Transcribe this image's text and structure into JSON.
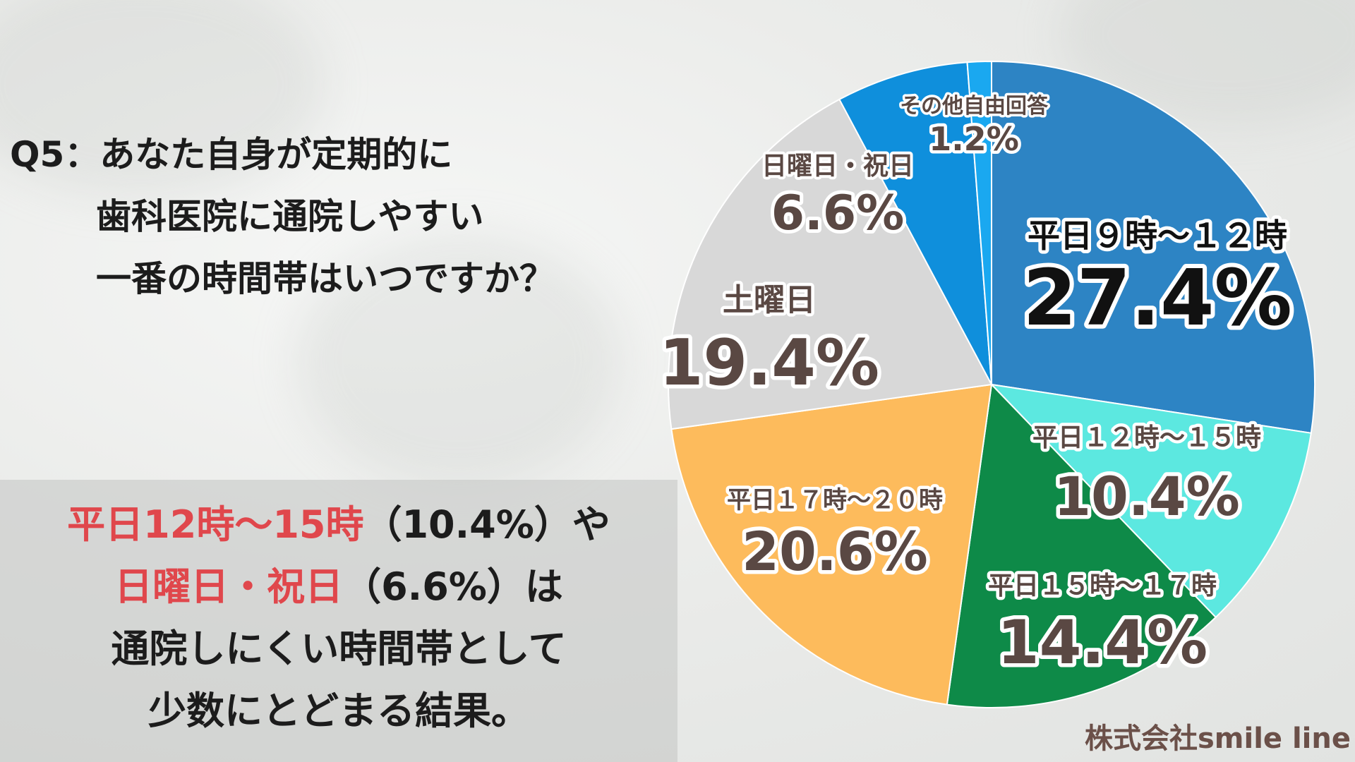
{
  "question": {
    "line1": "Q5：あなた自身が定期的に",
    "line2": "歯科医院に通院しやすい",
    "line3": "一番の時間帯はいつですか？"
  },
  "summary": {
    "line1_highlight": "平日12時〜15時",
    "line1_rest": "（10.4%）や",
    "line2_highlight": "日曜日・祝日",
    "line2_rest": "（6.6%）は",
    "line3": "通院しにくい時間帯として",
    "line4": "少数にとどまる結果。"
  },
  "credit": "株式会社smile line",
  "chart_data": {
    "type": "pie",
    "start": "12 o'clock, clockwise",
    "slices": [
      {
        "label": "平日９時〜１２時",
        "value": 27.4,
        "value_label": "27.4%",
        "color": "#2d84c4",
        "label_color": "#111111"
      },
      {
        "label": "平日１２時〜１５時",
        "value": 10.4,
        "value_label": "10.4%",
        "color": "#5ce8e0",
        "label_color": "#5a4843"
      },
      {
        "label": "平日１５時〜１７時",
        "value": 14.4,
        "value_label": "14.4%",
        "color": "#0e8a48",
        "label_color": "#5a4843"
      },
      {
        "label": "平日１７時〜２０時",
        "value": 20.6,
        "value_label": "20.6%",
        "color": "#fdbb5c",
        "label_color": "#5a4843"
      },
      {
        "label": "土曜日",
        "value": 19.4,
        "value_label": "19.4%",
        "color": "#d8d8d8",
        "label_color": "#5a4843"
      },
      {
        "label": "日曜日・祝日",
        "value": 6.6,
        "value_label": "6.6%",
        "color": "#0f8fdc",
        "label_color": "#5a4843"
      },
      {
        "label": "その他自由回答",
        "value": 1.2,
        "value_label": "1.2%",
        "color": "#1aa8f0",
        "label_color": "#5a4843"
      }
    ]
  }
}
